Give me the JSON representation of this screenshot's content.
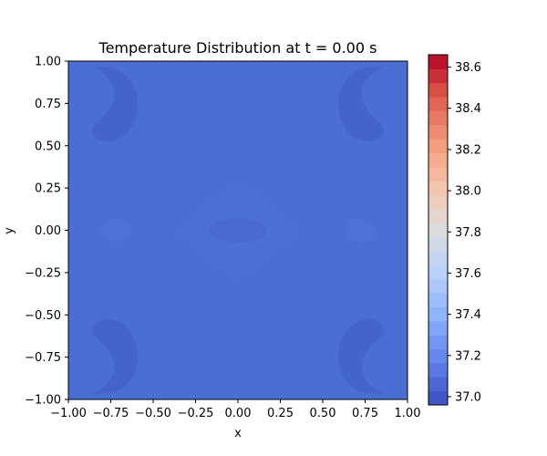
{
  "chart_data": {
    "type": "heatmap",
    "title": "Temperature Distribution at t = 0.00 s",
    "xlabel": "x",
    "ylabel": "y",
    "xlim": [
      -1.0,
      1.0
    ],
    "ylim": [
      -1.0,
      1.0
    ],
    "x_ticks": [
      "−1.00",
      "−0.75",
      "−0.50",
      "−0.25",
      "0.00",
      "0.25",
      "0.50",
      "0.75",
      "1.00"
    ],
    "y_ticks": [
      "1.00",
      "0.75",
      "0.50",
      "0.25",
      "0.00",
      "−0.25",
      "−0.50",
      "−0.75",
      "−1.00"
    ],
    "colorbar": {
      "colormap": "coolwarm",
      "range": [
        36.96,
        38.66
      ],
      "ticks": [
        "38.6",
        "38.4",
        "38.2",
        "38.0",
        "37.8",
        "37.6",
        "37.4",
        "37.2",
        "37.0"
      ]
    },
    "field": {
      "description_values": "near-uniform temperature field",
      "base_value": 37.03,
      "min_value": 36.98,
      "features": [
        {
          "x": -0.75,
          "y": 0.75,
          "value": 37.0
        },
        {
          "x": 0.75,
          "y": 0.75,
          "value": 37.0
        },
        {
          "x": -0.75,
          "y": -0.75,
          "value": 37.0
        },
        {
          "x": 0.75,
          "y": -0.75,
          "value": 37.0
        },
        {
          "x": 0.0,
          "y": 0.0,
          "value": 37.0
        }
      ]
    },
    "colors": {
      "plot_base": "#4b6ed2",
      "plot_dark": "#4563cc",
      "plot_light": "#5076d9"
    }
  }
}
